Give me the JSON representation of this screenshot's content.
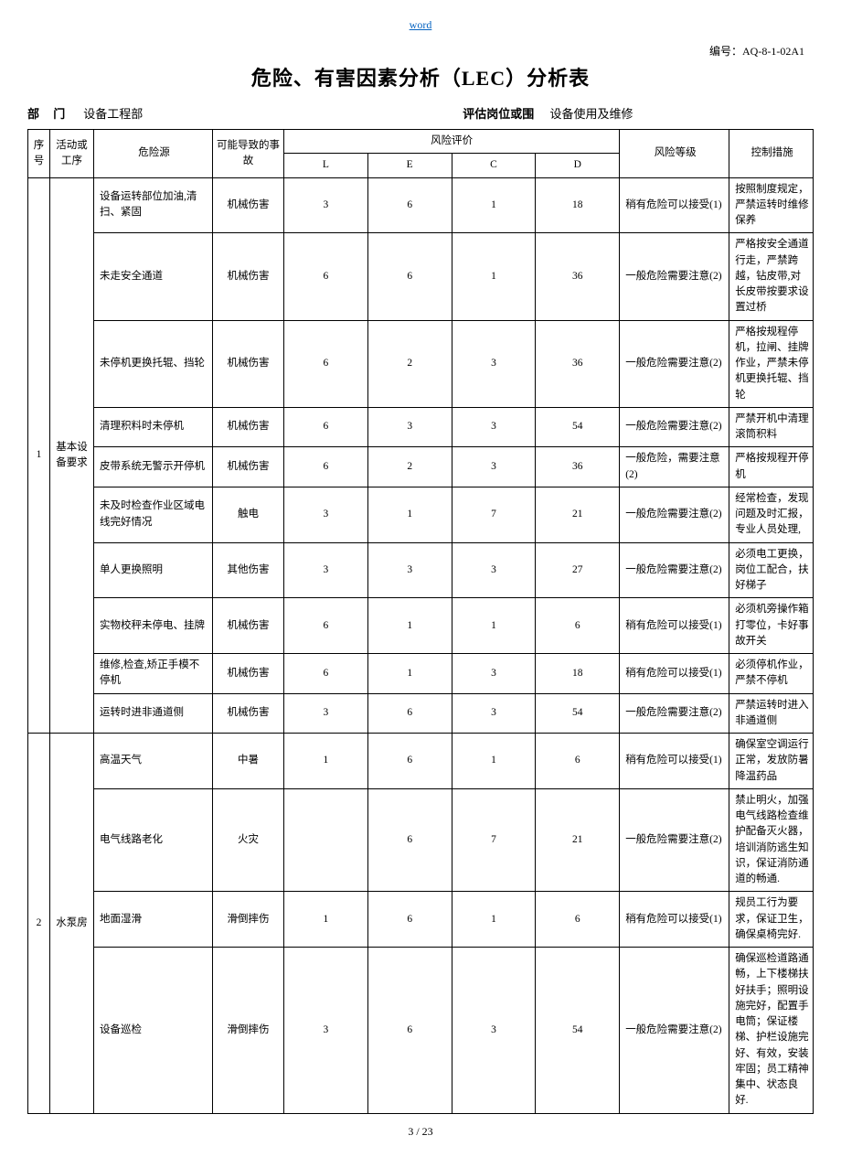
{
  "header_link": "word",
  "doc_code_label": "编号：",
  "doc_code": "AQ-8-1-02A1",
  "title": "危险、有害因素分析（LEC）分析表",
  "dept_label": "部 门",
  "dept_value": "设备工程部",
  "post_label": "评估岗位或围",
  "post_value": "设备使用及维修",
  "headers": {
    "seq": "序号",
    "activity": "活动或工序",
    "source": "危险源",
    "accident": "可能导致的事故",
    "risk_eval": "风险评价",
    "L": "L",
    "E": "E",
    "C": "C",
    "D": "D",
    "level": "风险等级",
    "control": "控制措施"
  },
  "groups": [
    {
      "seq": "1",
      "activity": "基本设备要求",
      "rows": [
        {
          "source": "设备运转部位加油,清扫、紧固",
          "accident": "机械伤害",
          "L": "3",
          "E": "6",
          "C": "1",
          "D": "18",
          "level": "稍有危险可以接受(1)",
          "control": "按照制度规定，严禁运转时维修保养"
        },
        {
          "source": "未走安全通道",
          "accident": "机械伤害",
          "L": "6",
          "E": "6",
          "C": "1",
          "D": "36",
          "level": "一般危险需要注意(2)",
          "control": "严格按安全通道行走，严禁跨越，钻皮带,对长皮带按要求设置过桥"
        },
        {
          "source": "未停机更换托辊、挡轮",
          "accident": "机械伤害",
          "L": "6",
          "E": "2",
          "C": "3",
          "D": "36",
          "level": "一般危险需要注意(2)",
          "control": "严格按规程停机，拉闸、挂牌作业，严禁未停机更换托辊、挡轮"
        },
        {
          "source": "清理积料时未停机",
          "accident": "机械伤害",
          "L": "6",
          "E": "3",
          "C": "3",
          "D": "54",
          "level": "一般危险需要注意(2)",
          "control": "严禁开机中清理滚筒积料"
        },
        {
          "source": "皮带系统无警示开停机",
          "accident": "机械伤害",
          "L": "6",
          "E": "2",
          "C": "3",
          "D": "36",
          "level": "一般危险，需要注意(2)",
          "control": "严格按规程开停机"
        },
        {
          "source": "未及时检查作业区域电线完好情况",
          "accident": "触电",
          "L": "3",
          "E": "1",
          "C": "7",
          "D": "21",
          "level": "一般危险需要注意(2)",
          "control": "经常检查，发现问题及时汇报，专业人员处理,"
        },
        {
          "source": "单人更换照明",
          "accident": "其他伤害",
          "L": "3",
          "E": "3",
          "C": "3",
          "D": "27",
          "level": "一般危险需要注意(2)",
          "control": "必须电工更换，岗位工配合，扶好梯子"
        },
        {
          "source": "实物校秤未停电、挂牌",
          "accident": "机械伤害",
          "L": "6",
          "E": "1",
          "C": "1",
          "D": "6",
          "level": "稍有危险可以接受(1)",
          "control": "必须机旁操作箱打零位，卡好事故开关"
        },
        {
          "source": "维修,检查,矫正手模不停机",
          "accident": "机械伤害",
          "L": "6",
          "E": "1",
          "C": "3",
          "D": "18",
          "level": "稍有危险可以接受(1)",
          "control": "必须停机作业，严禁不停机"
        },
        {
          "source": "运转时进非通道侧",
          "accident": "机械伤害",
          "L": "3",
          "E": "6",
          "C": "3",
          "D": "54",
          "level": "一般危险需要注意(2)",
          "control": "严禁运转时进入非通道侧"
        }
      ]
    },
    {
      "seq": "2",
      "activity": "水泵房",
      "rows": [
        {
          "source": "高温天气",
          "accident": "中暑",
          "L": "1",
          "E": "6",
          "C": "1",
          "D": "6",
          "level": "稍有危险可以接受(1)",
          "control": "确保室空调运行正常，发放防暑降温药品"
        },
        {
          "source": "电气线路老化",
          "accident": "火灾",
          "L": "",
          "E": "6",
          "C": "7",
          "D": "21",
          "level": "一般危险需要注意(2)",
          "control": "禁止明火，加强电气线路检查维护配备灭火器，培训消防逃生知识，保证消防通道的畅通."
        },
        {
          "source": "地面湿滑",
          "accident": "滑倒摔伤",
          "L": "1",
          "E": "6",
          "C": "1",
          "D": "6",
          "level": "稍有危险可以接受(1)",
          "control": "规员工行为要求，保证卫生，确保桌椅完好."
        },
        {
          "source": "设备巡检",
          "accident": "滑倒摔伤",
          "L": "3",
          "E": "6",
          "C": "3",
          "D": "54",
          "level": "一般危险需要注意(2)",
          "control": "确保巡检道路通畅，上下楼梯扶好扶手；照明设施完好，配置手电筒；保证楼梯、护栏设施完好、有效，安装牢固；员工精神集中、状态良好."
        }
      ]
    }
  ],
  "page_cur": "3",
  "page_sep": " / ",
  "page_total": "23"
}
